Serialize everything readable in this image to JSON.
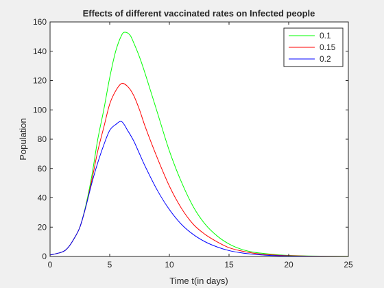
{
  "chart_data": {
    "type": "line",
    "title": "Effects of different vaccinated rates on Infected people",
    "xlabel": "Time t(in days)",
    "ylabel": "Population",
    "xlim": [
      0,
      25
    ],
    "ylim": [
      0,
      160
    ],
    "xticks": [
      0,
      5,
      10,
      15,
      20,
      25
    ],
    "yticks": [
      0,
      20,
      40,
      60,
      80,
      100,
      120,
      140,
      160
    ],
    "grid": false,
    "legend_position": "top-right",
    "series": [
      {
        "name": "0.1",
        "color": "#00ff00",
        "x": [
          0,
          1,
          1.5,
          2,
          2.5,
          3,
          3.5,
          4,
          4.5,
          5,
          5.5,
          6,
          6.3,
          6.7,
          7,
          7.5,
          8,
          9,
          10,
          11,
          12,
          13,
          14,
          15,
          16,
          17,
          18,
          19,
          20,
          22,
          25
        ],
        "y": [
          1,
          3,
          6,
          12,
          20,
          35,
          55,
          80,
          100,
          122,
          140,
          151,
          153,
          151,
          146,
          136,
          124,
          98,
          72,
          51,
          34,
          22,
          14,
          8.5,
          5,
          3,
          2,
          1.2,
          0.7,
          0.3,
          0.1
        ]
      },
      {
        "name": "0.15",
        "color": "#ff0000",
        "x": [
          0,
          1,
          1.5,
          2,
          2.5,
          3,
          3.5,
          4,
          4.5,
          5,
          5.5,
          6,
          6.5,
          7,
          7.5,
          8,
          9,
          10,
          11,
          12,
          13,
          14,
          15,
          16,
          17,
          18,
          19,
          20,
          22,
          25
        ],
        "y": [
          1,
          3,
          6,
          12,
          20,
          34,
          52,
          72,
          88,
          104,
          113,
          118,
          116,
          110,
          100,
          88,
          67,
          48,
          33,
          22,
          15,
          10,
          6,
          3.8,
          2.3,
          1.4,
          0.9,
          0.5,
          0.2,
          0.05
        ]
      },
      {
        "name": "0.2",
        "color": "#0000ff",
        "x": [
          0,
          1,
          1.5,
          2,
          2.5,
          3,
          3.5,
          4,
          4.5,
          5,
          5.5,
          6,
          6.5,
          7,
          7.5,
          8,
          9,
          10,
          11,
          12,
          13,
          14,
          15,
          16,
          17,
          18,
          19,
          20,
          22,
          25
        ],
        "y": [
          1,
          3,
          6,
          12,
          20,
          34,
          50,
          64,
          76,
          86,
          90,
          92,
          86,
          79,
          70,
          61,
          45,
          32,
          22,
          15,
          10,
          6.5,
          4,
          2.5,
          1.5,
          0.9,
          0.5,
          0.3,
          0.1,
          0.02
        ]
      }
    ]
  }
}
